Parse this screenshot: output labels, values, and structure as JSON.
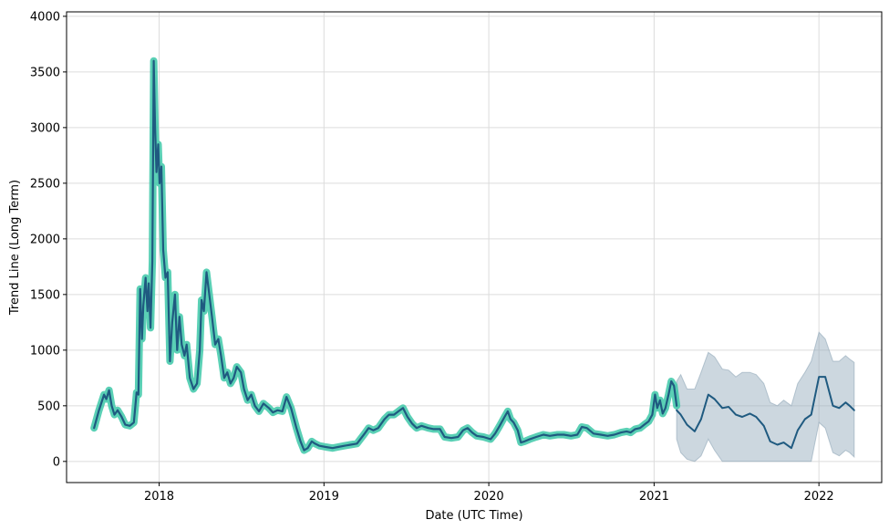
{
  "chart_data": {
    "type": "line",
    "title": "",
    "xlabel": "Date (UTC Time)",
    "ylabel": "Trend Line (Long Term)",
    "xlim": [
      "2017-06-10",
      "2022-05-20"
    ],
    "ylim": [
      -190,
      4040
    ],
    "grid": true,
    "x_ticks": [
      "2018",
      "2019",
      "2020",
      "2021",
      "2022"
    ],
    "y_ticks": [
      0,
      500,
      1000,
      1500,
      2000,
      2500,
      3000,
      3500,
      4000
    ],
    "colors": {
      "actual_line": "#1f5a80",
      "actual_glow": "#3dc8a8",
      "band": "#8fa7b8",
      "forecast_line": "#1f5a80"
    },
    "historical": [
      [
        "2017-08-10",
        300
      ],
      [
        "2017-08-20",
        450
      ],
      [
        "2017-09-01",
        600
      ],
      [
        "2017-09-06",
        560
      ],
      [
        "2017-09-12",
        640
      ],
      [
        "2017-09-18",
        500
      ],
      [
        "2017-09-24",
        420
      ],
      [
        "2017-10-01",
        460
      ],
      [
        "2017-10-10",
        400
      ],
      [
        "2017-10-18",
        330
      ],
      [
        "2017-10-28",
        320
      ],
      [
        "2017-11-06",
        350
      ],
      [
        "2017-11-12",
        620
      ],
      [
        "2017-11-16",
        600
      ],
      [
        "2017-11-20",
        1550
      ],
      [
        "2017-11-24",
        1100
      ],
      [
        "2017-11-27",
        1400
      ],
      [
        "2017-12-02",
        1650
      ],
      [
        "2017-12-06",
        1350
      ],
      [
        "2017-12-09",
        1600
      ],
      [
        "2017-12-13",
        1200
      ],
      [
        "2017-12-17",
        1800
      ],
      [
        "2017-12-20",
        3600
      ],
      [
        "2017-12-23",
        3000
      ],
      [
        "2017-12-26",
        2600
      ],
      [
        "2017-12-30",
        2850
      ],
      [
        "2018-01-02",
        2500
      ],
      [
        "2018-01-06",
        2650
      ],
      [
        "2018-01-10",
        1900
      ],
      [
        "2018-01-15",
        1650
      ],
      [
        "2018-01-20",
        1700
      ],
      [
        "2018-01-25",
        900
      ],
      [
        "2018-01-30",
        1250
      ],
      [
        "2018-02-05",
        1500
      ],
      [
        "2018-02-10",
        1000
      ],
      [
        "2018-02-15",
        1300
      ],
      [
        "2018-02-20",
        1050
      ],
      [
        "2018-02-26",
        950
      ],
      [
        "2018-03-03",
        1050
      ],
      [
        "2018-03-10",
        750
      ],
      [
        "2018-03-18",
        650
      ],
      [
        "2018-03-26",
        700
      ],
      [
        "2018-04-01",
        1000
      ],
      [
        "2018-04-05",
        1450
      ],
      [
        "2018-04-10",
        1350
      ],
      [
        "2018-04-16",
        1700
      ],
      [
        "2018-04-22",
        1500
      ],
      [
        "2018-04-28",
        1300
      ],
      [
        "2018-05-05",
        1050
      ],
      [
        "2018-05-12",
        1100
      ],
      [
        "2018-05-18",
        950
      ],
      [
        "2018-05-25",
        750
      ],
      [
        "2018-06-01",
        800
      ],
      [
        "2018-06-08",
        700
      ],
      [
        "2018-06-15",
        750
      ],
      [
        "2018-06-22",
        850
      ],
      [
        "2018-07-01",
        800
      ],
      [
        "2018-07-08",
        650
      ],
      [
        "2018-07-16",
        550
      ],
      [
        "2018-07-24",
        600
      ],
      [
        "2018-08-01",
        500
      ],
      [
        "2018-08-10",
        450
      ],
      [
        "2018-08-20",
        520
      ],
      [
        "2018-09-01",
        480
      ],
      [
        "2018-09-10",
        440
      ],
      [
        "2018-09-20",
        460
      ],
      [
        "2018-10-01",
        450
      ],
      [
        "2018-10-10",
        580
      ],
      [
        "2018-10-20",
        480
      ],
      [
        "2018-11-01",
        300
      ],
      [
        "2018-11-10",
        180
      ],
      [
        "2018-11-18",
        100
      ],
      [
        "2018-11-26",
        120
      ],
      [
        "2018-12-05",
        180
      ],
      [
        "2018-12-12",
        160
      ],
      [
        "2018-12-22",
        140
      ],
      [
        "2019-01-05",
        130
      ],
      [
        "2019-01-20",
        120
      ],
      [
        "2019-02-01",
        130
      ],
      [
        "2019-02-15",
        140
      ],
      [
        "2019-03-01",
        150
      ],
      [
        "2019-03-15",
        160
      ],
      [
        "2019-04-01",
        250
      ],
      [
        "2019-04-10",
        300
      ],
      [
        "2019-04-20",
        280
      ],
      [
        "2019-05-01",
        300
      ],
      [
        "2019-05-15",
        380
      ],
      [
        "2019-05-25",
        420
      ],
      [
        "2019-06-05",
        420
      ],
      [
        "2019-06-15",
        450
      ],
      [
        "2019-06-25",
        480
      ],
      [
        "2019-07-05",
        400
      ],
      [
        "2019-07-15",
        340
      ],
      [
        "2019-07-25",
        300
      ],
      [
        "2019-08-05",
        320
      ],
      [
        "2019-08-20",
        300
      ],
      [
        "2019-09-01",
        290
      ],
      [
        "2019-09-15",
        290
      ],
      [
        "2019-09-25",
        220
      ],
      [
        "2019-10-10",
        210
      ],
      [
        "2019-10-25",
        220
      ],
      [
        "2019-11-05",
        280
      ],
      [
        "2019-11-15",
        300
      ],
      [
        "2019-11-25",
        260
      ],
      [
        "2019-12-05",
        230
      ],
      [
        "2019-12-20",
        220
      ],
      [
        "2020-01-05",
        200
      ],
      [
        "2020-01-15",
        250
      ],
      [
        "2020-01-25",
        320
      ],
      [
        "2020-02-05",
        400
      ],
      [
        "2020-02-12",
        450
      ],
      [
        "2020-02-18",
        380
      ],
      [
        "2020-02-25",
        350
      ],
      [
        "2020-03-05",
        280
      ],
      [
        "2020-03-12",
        170
      ],
      [
        "2020-03-20",
        180
      ],
      [
        "2020-04-01",
        200
      ],
      [
        "2020-04-15",
        220
      ],
      [
        "2020-05-01",
        240
      ],
      [
        "2020-05-15",
        230
      ],
      [
        "2020-06-01",
        240
      ],
      [
        "2020-06-15",
        240
      ],
      [
        "2020-07-01",
        230
      ],
      [
        "2020-07-15",
        240
      ],
      [
        "2020-07-25",
        310
      ],
      [
        "2020-08-05",
        300
      ],
      [
        "2020-08-20",
        250
      ],
      [
        "2020-09-05",
        240
      ],
      [
        "2020-09-20",
        230
      ],
      [
        "2020-10-05",
        240
      ],
      [
        "2020-10-20",
        260
      ],
      [
        "2020-11-01",
        270
      ],
      [
        "2020-11-10",
        260
      ],
      [
        "2020-11-20",
        290
      ],
      [
        "2020-12-01",
        300
      ],
      [
        "2020-12-10",
        330
      ],
      [
        "2020-12-20",
        360
      ],
      [
        "2020-12-28",
        420
      ],
      [
        "2021-01-03",
        600
      ],
      [
        "2021-01-08",
        480
      ],
      [
        "2021-01-14",
        550
      ],
      [
        "2021-01-20",
        430
      ],
      [
        "2021-01-26",
        480
      ],
      [
        "2021-02-02",
        600
      ],
      [
        "2021-02-08",
        720
      ],
      [
        "2021-02-14",
        680
      ],
      [
        "2021-02-20",
        500
      ]
    ],
    "forecast": [
      [
        "2021-02-20",
        460
      ],
      [
        "2021-03-01",
        420
      ],
      [
        "2021-03-15",
        330
      ],
      [
        "2021-04-01",
        270
      ],
      [
        "2021-04-15",
        380
      ],
      [
        "2021-05-01",
        600
      ],
      [
        "2021-05-15",
        560
      ],
      [
        "2021-06-01",
        480
      ],
      [
        "2021-06-15",
        490
      ],
      [
        "2021-07-01",
        420
      ],
      [
        "2021-07-15",
        400
      ],
      [
        "2021-08-01",
        430
      ],
      [
        "2021-08-15",
        400
      ],
      [
        "2021-09-01",
        320
      ],
      [
        "2021-09-15",
        180
      ],
      [
        "2021-10-01",
        150
      ],
      [
        "2021-10-15",
        170
      ],
      [
        "2021-11-01",
        120
      ],
      [
        "2021-11-15",
        280
      ],
      [
        "2021-12-01",
        380
      ],
      [
        "2021-12-15",
        420
      ],
      [
        "2022-01-01",
        760
      ],
      [
        "2022-01-15",
        760
      ],
      [
        "2022-02-01",
        500
      ],
      [
        "2022-02-15",
        480
      ],
      [
        "2022-03-01",
        530
      ],
      [
        "2022-03-10",
        500
      ],
      [
        "2022-03-20",
        460
      ]
    ],
    "forecast_band": [
      [
        "2021-02-20",
        200,
        720
      ],
      [
        "2021-03-01",
        80,
        780
      ],
      [
        "2021-03-15",
        20,
        650
      ],
      [
        "2021-04-01",
        0,
        650
      ],
      [
        "2021-04-15",
        50,
        800
      ],
      [
        "2021-05-01",
        200,
        980
      ],
      [
        "2021-05-15",
        100,
        940
      ],
      [
        "2021-06-01",
        0,
        830
      ],
      [
        "2021-06-15",
        0,
        820
      ],
      [
        "2021-07-01",
        0,
        760
      ],
      [
        "2021-07-15",
        0,
        800
      ],
      [
        "2021-08-01",
        0,
        800
      ],
      [
        "2021-08-15",
        0,
        780
      ],
      [
        "2021-09-01",
        0,
        700
      ],
      [
        "2021-09-15",
        0,
        530
      ],
      [
        "2021-10-01",
        0,
        500
      ],
      [
        "2021-10-15",
        0,
        550
      ],
      [
        "2021-11-01",
        0,
        500
      ],
      [
        "2021-11-15",
        0,
        700
      ],
      [
        "2021-12-01",
        0,
        800
      ],
      [
        "2021-12-15",
        0,
        900
      ],
      [
        "2022-01-01",
        350,
        1160
      ],
      [
        "2022-01-15",
        300,
        1100
      ],
      [
        "2022-02-01",
        80,
        900
      ],
      [
        "2022-02-15",
        50,
        900
      ],
      [
        "2022-03-01",
        100,
        950
      ],
      [
        "2022-03-10",
        80,
        920
      ],
      [
        "2022-03-20",
        40,
        890
      ]
    ]
  }
}
